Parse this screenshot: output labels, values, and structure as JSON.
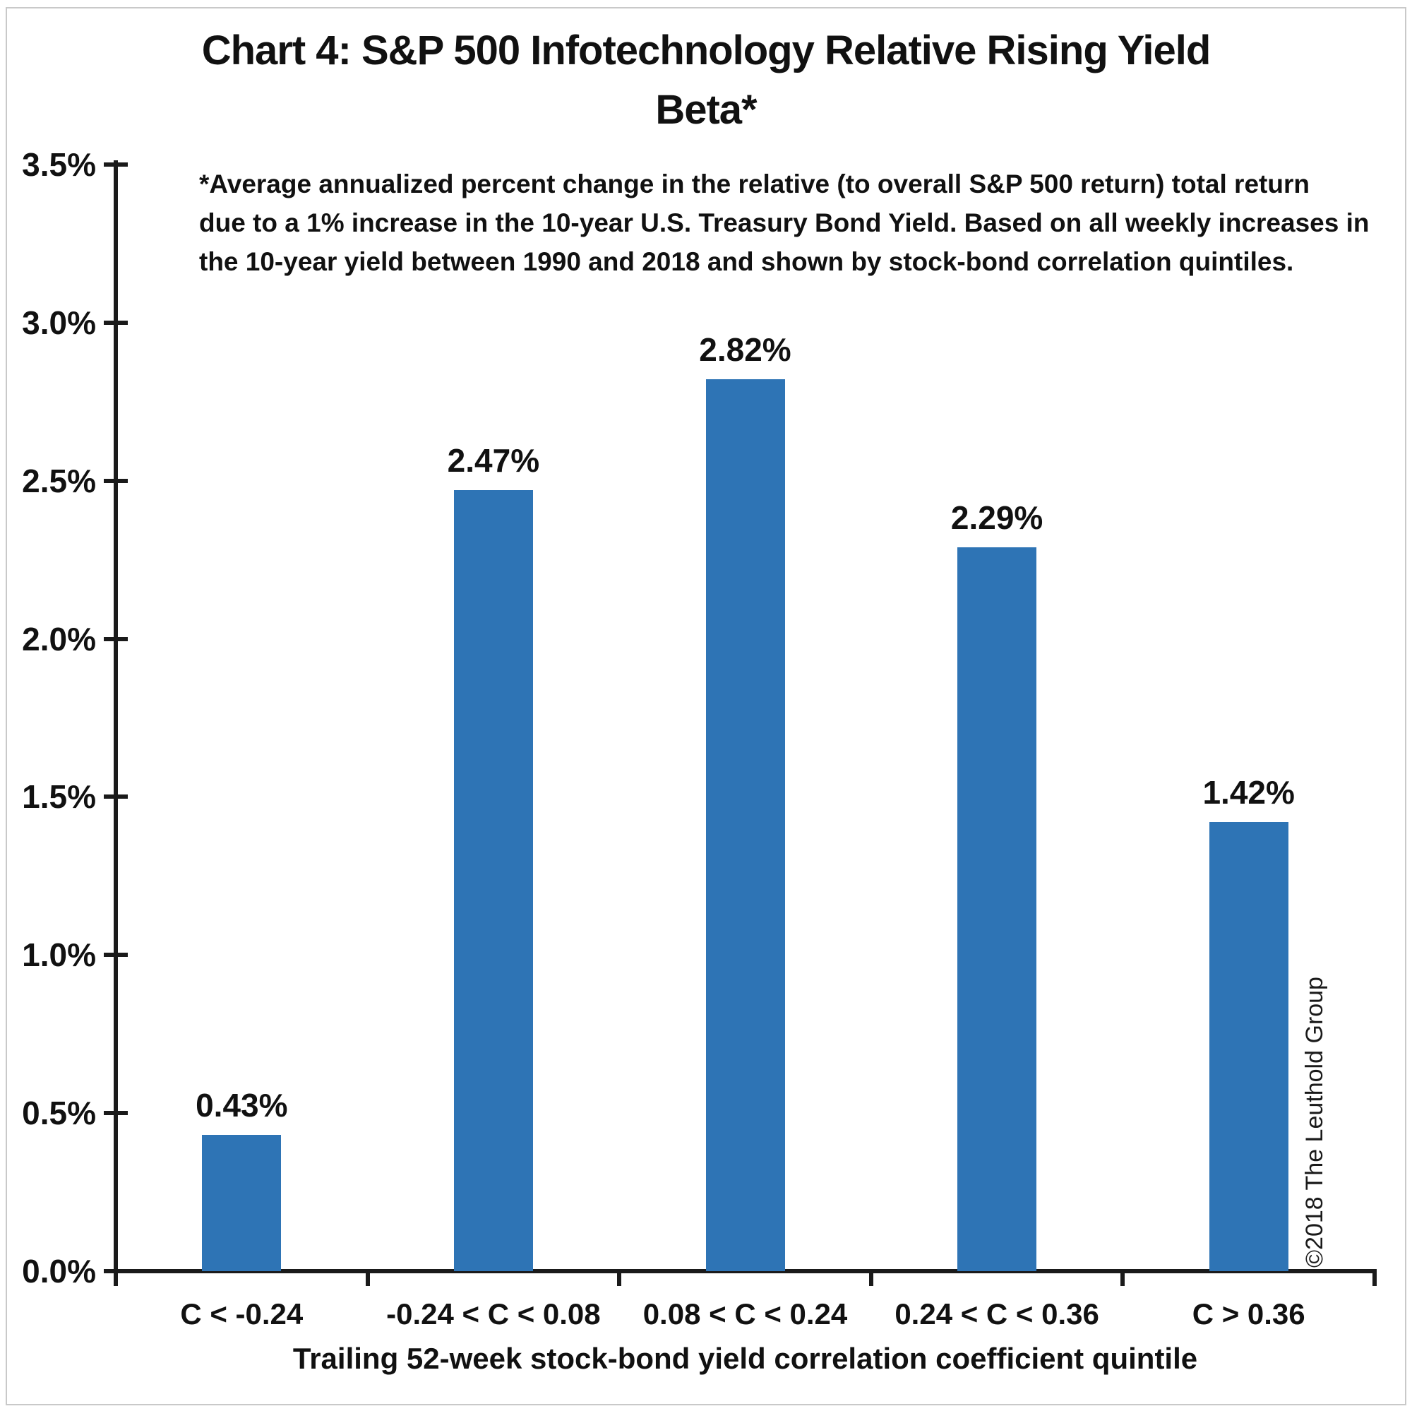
{
  "title": {
    "line1": "Chart 4: S&P 500 Infotechnology Relative Rising Yield",
    "line2": "Beta*"
  },
  "annotation": {
    "lines": [
      "*Average annualized percent change in the relative (to overall S&P 500 return) total return",
      "due to a 1% increase in the 10-year U.S. Treasury Bond Yield.  Based on all weekly increases in",
      "the 10-year yield between 1990 and 2018 and shown by stock-bond correlation quintiles."
    ]
  },
  "watermark": "©2018 The Leuthold Group",
  "chart_data": {
    "type": "bar",
    "title": "Chart 4: S&P 500 Infotechnology Relative Rising Yield Beta*",
    "categories": [
      "C < -0.24",
      "-0.24 < C < 0.08",
      "0.08 < C < 0.24",
      "0.24 < C < 0.36",
      "C > 0.36"
    ],
    "values": [
      0.43,
      2.47,
      2.82,
      2.29,
      1.42
    ],
    "value_labels": [
      "0.43%",
      "2.47%",
      "2.82%",
      "2.29%",
      "1.42%"
    ],
    "xlabel": "Trailing 52-week stock-bond yield correlation coefficient quintile",
    "ylabel": "",
    "ylim": [
      0,
      3.5
    ],
    "y_tick_step": 0.5,
    "y_tick_labels": [
      "0.0%",
      "0.5%",
      "1.0%",
      "1.5%",
      "2.0%",
      "2.5%",
      "3.0%",
      "3.5%"
    ],
    "bar_color": "#2E74B5",
    "axis_color": "#1a1a1a",
    "grid": false,
    "legend": false,
    "data_labels": true
  }
}
